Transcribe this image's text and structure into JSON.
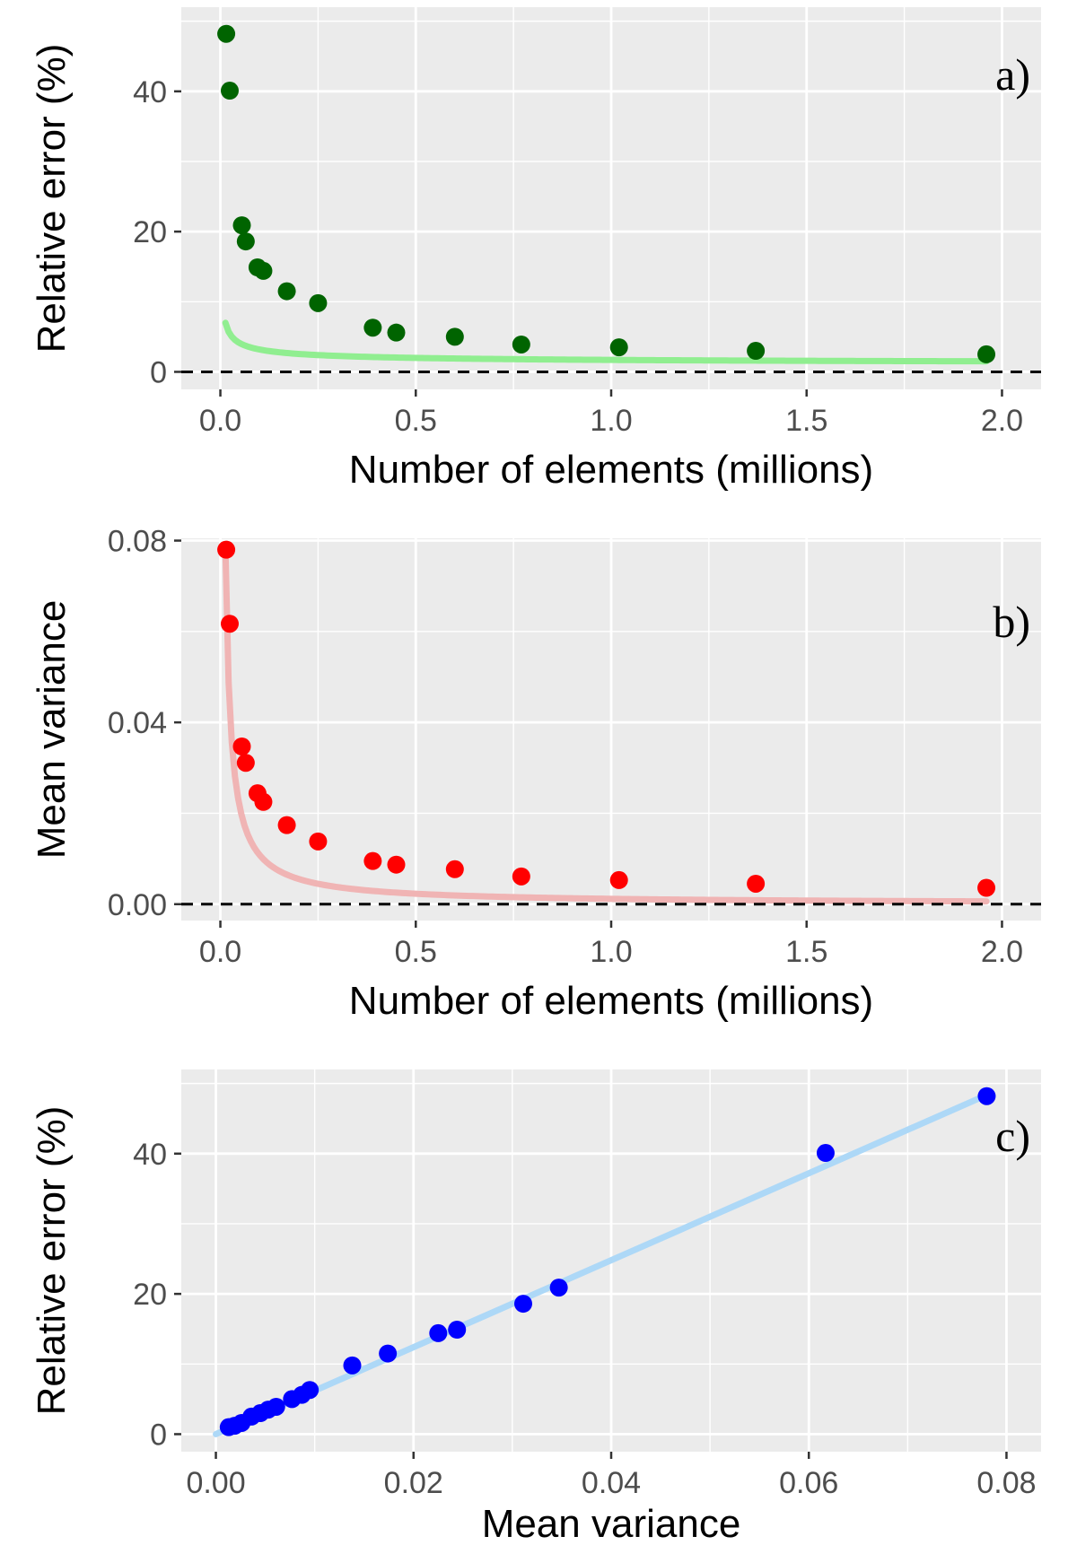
{
  "colors": {
    "panel_bg": "#ebebeb",
    "grid": "#ffffff",
    "a_points": "#006400",
    "a_line": "#90ee90",
    "b_points": "#ff0000",
    "b_line": "#f0b4b4",
    "c_points": "#0000ff",
    "c_line": "#add8f7",
    "refline": "#000000",
    "tick_text": "#4d4d4d"
  },
  "chart_data": [
    {
      "type": "scatter",
      "panel_label": "a)",
      "xlabel": "Number of elements (millions)",
      "ylabel": "Relative error (%)",
      "xlim": [
        -0.1,
        2.1
      ],
      "ylim": [
        -2.5,
        52
      ],
      "xticks": [
        0.0,
        0.5,
        1.0,
        1.5,
        2.0
      ],
      "xtick_labels": [
        "0.0",
        "0.5",
        "1.0",
        "1.5",
        "2.0"
      ],
      "yticks": [
        0,
        20,
        40
      ],
      "ytick_labels": [
        "0",
        "20",
        "40"
      ],
      "x": [
        0.015,
        0.024,
        0.055,
        0.065,
        0.095,
        0.11,
        0.17,
        0.25,
        0.39,
        0.45,
        0.6,
        0.77,
        1.02,
        1.37,
        1.96
      ],
      "y": [
        48.2,
        40.1,
        20.9,
        18.6,
        14.9,
        14.4,
        11.5,
        9.8,
        6.3,
        5.6,
        5.0,
        3.9,
        3.5,
        3.0,
        2.5
      ],
      "reference_line_y": 0,
      "fit_curve": {
        "a": 0.703,
        "b": 0.4935,
        "c": 1.0,
        "x_range": [
          0.013,
          1.96
        ]
      },
      "point_color_key": "a_points",
      "line_color_key": "a_line"
    },
    {
      "type": "scatter",
      "panel_label": "b)",
      "xlabel": "Number of elements (millions)",
      "ylabel": "Mean variance",
      "xlim": [
        -0.1,
        2.1
      ],
      "ylim": [
        -0.0036,
        0.0805
      ],
      "xticks": [
        0.0,
        0.5,
        1.0,
        1.5,
        2.0
      ],
      "xtick_labels": [
        "0.0",
        "0.5",
        "1.0",
        "1.5",
        "2.0"
      ],
      "yticks": [
        0.0,
        0.04,
        0.08
      ],
      "ytick_labels": [
        "0.00",
        "0.04",
        "0.08"
      ],
      "x": [
        0.015,
        0.024,
        0.055,
        0.065,
        0.095,
        0.11,
        0.17,
        0.25,
        0.39,
        0.45,
        0.6,
        0.77,
        1.02,
        1.37,
        1.96
      ],
      "y": [
        0.078,
        0.0617,
        0.0347,
        0.0311,
        0.0244,
        0.0225,
        0.0174,
        0.0138,
        0.0095,
        0.0087,
        0.0077,
        0.0061,
        0.0053,
        0.0045,
        0.0036
      ],
      "reference_line_y": 0,
      "fit_curve": {
        "a": 0.001176,
        "b": 0.9655,
        "c": 0.0,
        "x_range": [
          0.013,
          1.96
        ]
      },
      "point_color_key": "b_points",
      "line_color_key": "b_line"
    },
    {
      "type": "scatter",
      "panel_label": "c)",
      "xlabel": "Mean variance",
      "ylabel": "Relative error (%)",
      "xlim": [
        -0.0035,
        0.0835
      ],
      "ylim": [
        -2.5,
        52
      ],
      "xticks": [
        0.0,
        0.02,
        0.04,
        0.06,
        0.08
      ],
      "xtick_labels": [
        "0.00",
        "0.02",
        "0.04",
        "0.06",
        "0.08"
      ],
      "yticks": [
        0,
        20,
        40
      ],
      "ytick_labels": [
        "0",
        "20",
        "40"
      ],
      "x": [
        0.078,
        0.0617,
        0.0347,
        0.0311,
        0.0244,
        0.0225,
        0.0174,
        0.0138,
        0.0095,
        0.0087,
        0.0077,
        0.0061,
        0.0053,
        0.0045,
        0.0036,
        0.0026,
        0.0019,
        0.0013
      ],
      "y": [
        48.2,
        40.1,
        20.9,
        18.6,
        14.9,
        14.4,
        11.5,
        9.8,
        6.3,
        5.6,
        5.0,
        3.9,
        3.5,
        3.0,
        2.5,
        1.6,
        1.2,
        1.0
      ],
      "fit_line": {
        "slope": 620,
        "intercept": 0.0,
        "x_range": [
          0.0,
          0.078
        ]
      },
      "point_color_key": "c_points",
      "line_color_key": "c_line"
    }
  ]
}
